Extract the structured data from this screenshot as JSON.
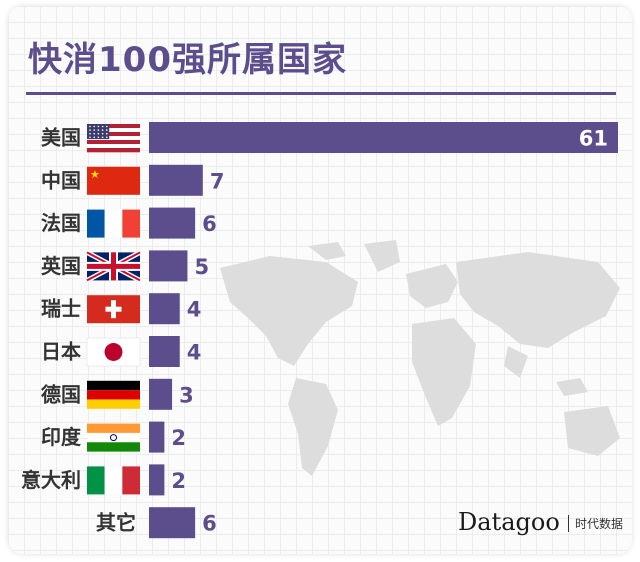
{
  "title": "快消100强所属国家",
  "brand": {
    "name": "Datagoo",
    "sub": "时代数据"
  },
  "colors": {
    "bar": "#5c4d8c",
    "map": "#dddddd"
  },
  "chart_data": {
    "type": "bar",
    "orientation": "horizontal",
    "title": "快消100强所属国家",
    "categories": [
      "美国",
      "中国",
      "法国",
      "英国",
      "瑞士",
      "日本",
      "德国",
      "印度",
      "意大利",
      "其它"
    ],
    "values": [
      61,
      7,
      6,
      5,
      4,
      4,
      3,
      2,
      2,
      6
    ],
    "flags": [
      "us-flag-icon",
      "china-flag-icon",
      "france-flag-icon",
      "uk-flag-icon",
      "switzerland-flag-icon",
      "japan-flag-icon",
      "germany-flag-icon",
      "india-flag-icon",
      "italy-flag-icon",
      ""
    ],
    "grid": true,
    "legend": "none"
  }
}
